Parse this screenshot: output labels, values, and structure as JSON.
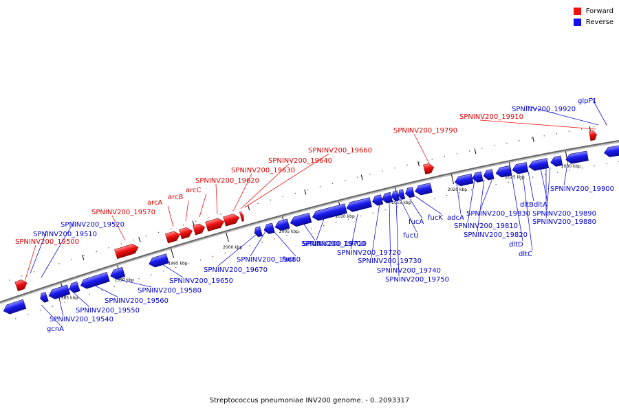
{
  "legend": {
    "forward": {
      "label": "Forward",
      "color": "#ee1111"
    },
    "reverse": {
      "label": "Reverse",
      "color": "#1111ee"
    }
  },
  "caption": "Streptococcus pneumoniae INV200 genome. - 0..2093317",
  "scale": {
    "ticks": [
      "1985 kbp",
      "1990 kbp",
      "1995 kbp",
      "2000 kbp",
      "2005 kbp",
      "2010 kbp",
      "2015 kbp",
      "2020 kbp",
      "2025 kbp",
      "2030 kbp"
    ]
  },
  "genes": {
    "forward": [
      "SPNINV200_19500",
      "SPNINV200_19570",
      "arcA",
      "arcB",
      "arcC",
      "SPNINV200_19620",
      "SPNINV200_19630",
      "SPNINV200_19640",
      "SPNINV200_19660",
      "SPNINV200_19790",
      "SPNINV200_19910"
    ],
    "reverse": [
      "SPNINV200_19510",
      "SPNINV200_19520",
      "gcnA",
      "SPNINV200_19540",
      "SPNINV200_19550",
      "SPNINV200_19560",
      "SPNINV200_19580",
      "SPNINV200_19650",
      "SPNINV200_19670",
      "SPNINV200_19680",
      "fucI",
      "SPNINV200_19700",
      "SPNINV200_19710",
      "SPNINV200_19720",
      "SPNINV200_19730",
      "SPNINV200_19740",
      "SPNINV200_19750",
      "fucU",
      "fucA",
      "fucK",
      "adcA",
      "SPNINV200_19810",
      "SPNINV200_19820",
      "SPNINV200_19830",
      "dltD",
      "dltC",
      "dltB",
      "dltA",
      "SPNINV200_19880",
      "SPNINV200_19890",
      "SPNINV200_19900",
      "SPNINV200_19920",
      "glpF1"
    ]
  }
}
